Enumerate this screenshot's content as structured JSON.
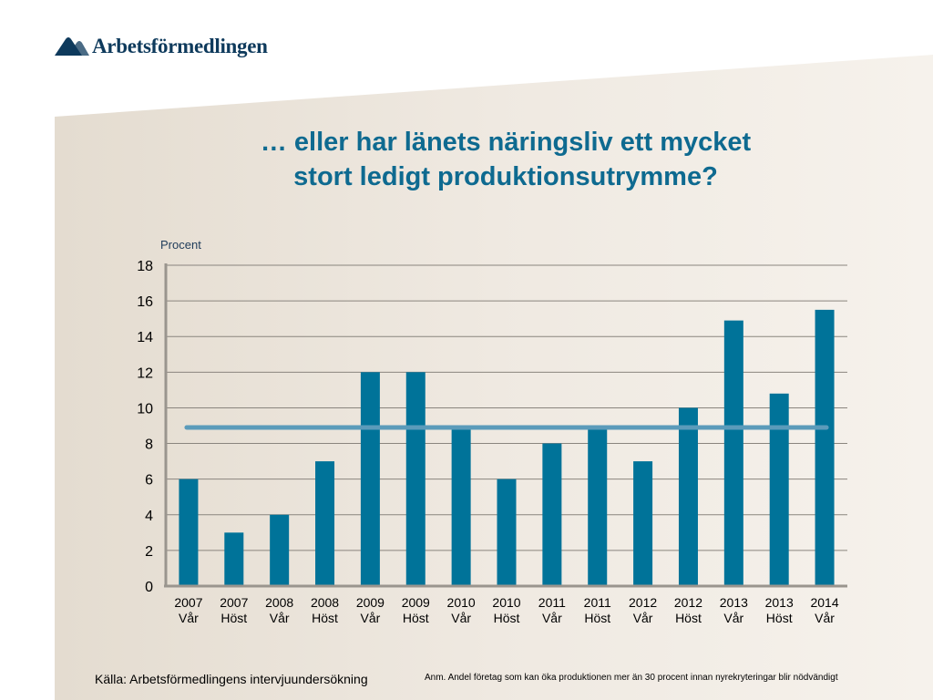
{
  "logo": {
    "text": "Arbetsförmedlingen"
  },
  "title": {
    "line1": "… eller har länets näringsliv ett mycket",
    "line2": "stort ledigt produktionsutrymme?"
  },
  "colors": {
    "bar": "#007399",
    "reference_line": "#5b9bba",
    "title": "#0e6a90",
    "panel": "#e9e2d8"
  },
  "chart_data": {
    "type": "bar",
    "ylabel": "Procent",
    "xlabel": "",
    "ylim": [
      0,
      18
    ],
    "yticks": [
      0,
      2,
      4,
      6,
      8,
      10,
      12,
      14,
      16,
      18
    ],
    "grid": true,
    "categories": [
      [
        "2007",
        "Vår"
      ],
      [
        "2007",
        "Höst"
      ],
      [
        "2008",
        "Vår"
      ],
      [
        "2008",
        "Höst"
      ],
      [
        "2009",
        "Vår"
      ],
      [
        "2009",
        "Höst"
      ],
      [
        "2010",
        "Vår"
      ],
      [
        "2010",
        "Höst"
      ],
      [
        "2011",
        "Vår"
      ],
      [
        "2011",
        "Höst"
      ],
      [
        "2012",
        "Vår"
      ],
      [
        "2012",
        "Höst"
      ],
      [
        "2013",
        "Vår"
      ],
      [
        "2013",
        "Höst"
      ],
      [
        "2014",
        "Vår"
      ]
    ],
    "values": [
      6,
      3,
      4,
      7,
      12,
      12,
      9,
      6,
      8,
      9,
      7,
      10,
      14.9,
      10.8,
      15.5
    ],
    "reference_line": {
      "value": 8.9
    }
  },
  "footer": {
    "source": "Källa: Arbetsförmedlingens intervjuundersökning",
    "note": "Anm. Andel företag som kan öka produktionen mer än 30 procent innan nyrekryteringar blir nödvändigt"
  }
}
